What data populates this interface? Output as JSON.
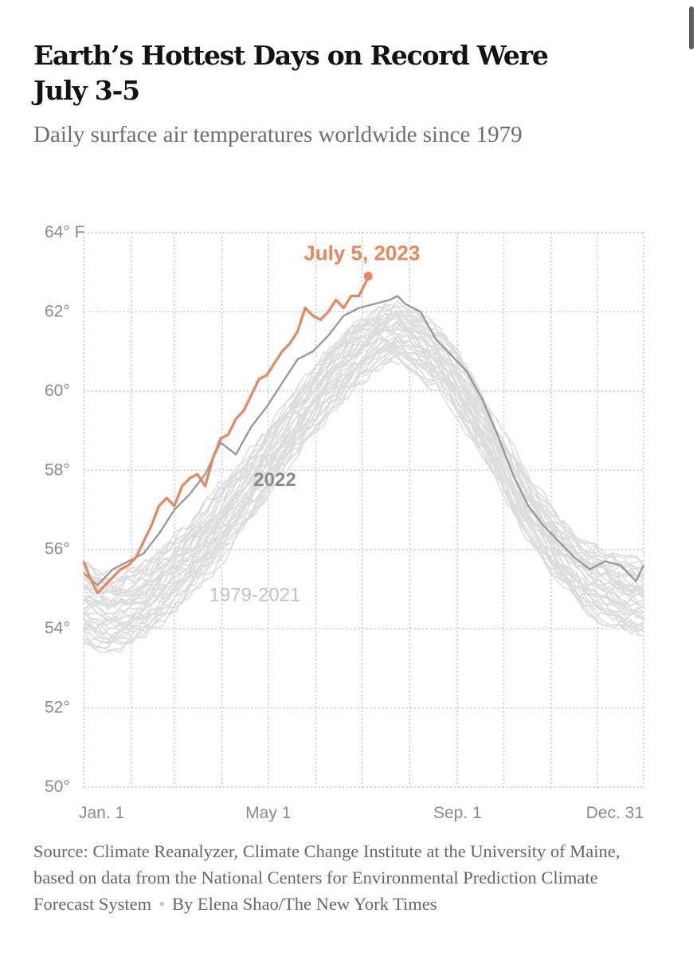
{
  "header": {
    "title": "Earth’s Hottest Days on Record Were July 3-5",
    "subtitle": "Daily surface air temperatures worldwide since 1979"
  },
  "footer": {
    "source": "Source: Climate Reanalyzer, Climate Change Institute at the University of Maine, based on data from the National Centers for Environmental Prediction Climate Forecast System",
    "byline": "By Elena Shao/The New York Times"
  },
  "colors": {
    "highlight": "#e8875b",
    "prior_year": "#9a9a9a",
    "history": "#dddddd",
    "grid": "#c4c4c4",
    "tick_text": "#8a8a8a"
  },
  "chart_data": {
    "type": "line",
    "title": "Earth’s Hottest Days on Record Were July 3-5",
    "xlabel": "",
    "ylabel": "",
    "ylim": [
      50,
      64
    ],
    "xlim": [
      "Jan. 1",
      "Dec. 31"
    ],
    "y_ticks": [
      {
        "value": 64,
        "label": "64° F"
      },
      {
        "value": 62,
        "label": "62°"
      },
      {
        "value": 60,
        "label": "60°"
      },
      {
        "value": 58,
        "label": "58°"
      },
      {
        "value": 56,
        "label": "56°"
      },
      {
        "value": 54,
        "label": "54°"
      },
      {
        "value": 52,
        "label": "52°"
      },
      {
        "value": 50,
        "label": "50°"
      }
    ],
    "x_ticks": [
      {
        "day": 1,
        "label": "Jan. 1"
      },
      {
        "day": 121,
        "label": "May 1"
      },
      {
        "day": 244,
        "label": "Sep. 1"
      },
      {
        "day": 365,
        "label": "Dec. 31"
      }
    ],
    "grid": true,
    "series": [
      {
        "name": "1979-2021",
        "kind": "band",
        "x": [
          1,
          20,
          40,
          60,
          80,
          100,
          120,
          140,
          160,
          180,
          195,
          205,
          220,
          235,
          250,
          270,
          290,
          310,
          330,
          350,
          365
        ],
        "low": [
          53.6,
          53.5,
          53.8,
          54.5,
          55.3,
          56.3,
          57.4,
          58.5,
          59.5,
          60.3,
          60.7,
          60.8,
          60.5,
          60.0,
          59.1,
          57.7,
          56.3,
          55.2,
          54.4,
          54.0,
          53.9
        ],
        "high": [
          55.7,
          55.3,
          55.6,
          56.3,
          57.1,
          58.0,
          59.0,
          60.0,
          61.0,
          61.8,
          62.1,
          62.2,
          61.9,
          61.4,
          60.6,
          59.2,
          57.8,
          56.8,
          56.1,
          55.8,
          55.6
        ]
      },
      {
        "name": "2022",
        "x": [
          1,
          10,
          20,
          30,
          40,
          50,
          60,
          70,
          80,
          90,
          100,
          110,
          120,
          130,
          140,
          150,
          160,
          170,
          180,
          190,
          200,
          205,
          210,
          220,
          230,
          240,
          250,
          260,
          270,
          280,
          290,
          300,
          310,
          320,
          330,
          340,
          350,
          360,
          365
        ],
        "y": [
          55.4,
          55.1,
          55.5,
          55.7,
          55.9,
          56.4,
          57.0,
          57.4,
          57.9,
          58.7,
          58.4,
          59.1,
          59.6,
          60.2,
          60.8,
          61.0,
          61.4,
          61.9,
          62.1,
          62.2,
          62.3,
          62.4,
          62.2,
          62.0,
          61.3,
          60.9,
          60.5,
          59.8,
          58.9,
          57.9,
          57.1,
          56.6,
          56.2,
          55.8,
          55.5,
          55.7,
          55.6,
          55.2,
          55.6
        ]
      },
      {
        "name": "2023",
        "x": [
          1,
          5,
          10,
          15,
          20,
          25,
          30,
          35,
          40,
          45,
          50,
          55,
          60,
          65,
          70,
          75,
          80,
          85,
          90,
          95,
          100,
          105,
          110,
          115,
          120,
          125,
          130,
          135,
          140,
          145,
          150,
          155,
          160,
          165,
          170,
          175,
          180,
          185,
          186
        ],
        "y": [
          55.7,
          55.3,
          54.9,
          55.1,
          55.3,
          55.5,
          55.6,
          55.8,
          56.2,
          56.6,
          57.1,
          57.3,
          57.1,
          57.6,
          57.8,
          57.9,
          57.6,
          58.3,
          58.8,
          58.9,
          59.3,
          59.5,
          59.9,
          60.3,
          60.4,
          60.7,
          61.0,
          61.2,
          61.5,
          62.1,
          61.9,
          61.8,
          62.0,
          62.3,
          62.1,
          62.4,
          62.4,
          62.8,
          62.9
        ]
      }
    ],
    "annotations": [
      {
        "text": "July 5, 2023",
        "series": "2023"
      },
      {
        "text": "2022",
        "series": "2022"
      },
      {
        "text": "1979-2021",
        "series": "1979-2021"
      }
    ]
  }
}
